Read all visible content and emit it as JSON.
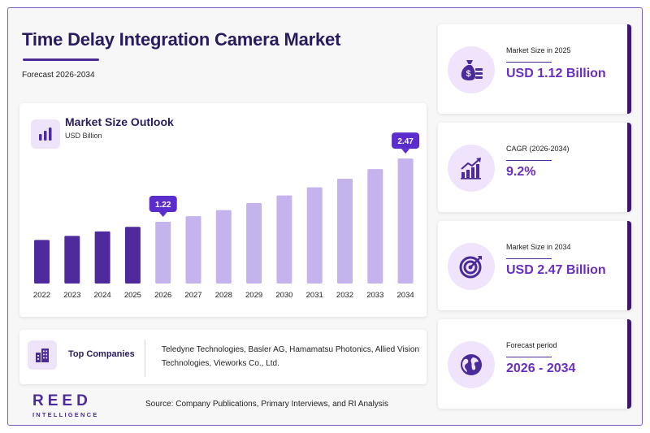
{
  "header": {
    "title": "Time Delay Integration Camera Market",
    "subtitle": "Forecast 2026-2034"
  },
  "chart": {
    "title": "Market Size Outlook",
    "unit": "USD Billion",
    "icon": "bar-chart-icon"
  },
  "chart_data": {
    "type": "bar",
    "title": "Market Size Outlook",
    "ylabel": "USD Billion",
    "categories": [
      "2022",
      "2023",
      "2024",
      "2025",
      "2026",
      "2027",
      "2028",
      "2029",
      "2030",
      "2031",
      "2032",
      "2033",
      "2034"
    ],
    "values": [
      0.86,
      0.94,
      1.03,
      1.12,
      1.22,
      1.33,
      1.45,
      1.59,
      1.74,
      1.9,
      2.07,
      2.26,
      2.47
    ],
    "data_labels": {
      "2026": "1.22",
      "2034": "2.47"
    },
    "ylim": [
      0,
      2.6
    ],
    "grid": false,
    "colors": {
      "historical": "#4f2a9c",
      "forecast": "#c5b3ee",
      "callout": "#5b2dcc"
    }
  },
  "companies": {
    "label": "Top Companies",
    "icon": "building-icon",
    "text": "Teledyne Technologies, Basler AG, Hamamatsu Photonics, Allied Vision Technologies, Vieworks Co., Ltd."
  },
  "stats": [
    {
      "label": "Market Size in 2025",
      "value": "USD 1.12 Billion",
      "icon": "money-bag-icon"
    },
    {
      "label": "CAGR (2026-2034)",
      "value": "9.2%",
      "icon": "growth-chart-icon"
    },
    {
      "label": "Market Size in 2034",
      "value": "USD 2.47 Billion",
      "icon": "target-icon"
    },
    {
      "label": "Forecast period",
      "value": "2026 - 2034",
      "icon": "globe-icon"
    }
  ],
  "footer": {
    "logo_main": "REED",
    "logo_sub": "INTELLIGENCE",
    "source": "Source: Company Publications, Primary Interviews, and RI Analysis"
  },
  "colors": {
    "brand_dark": "#2a1a5e",
    "accent": "#6a2fc0",
    "card_border": "#3d1670"
  }
}
